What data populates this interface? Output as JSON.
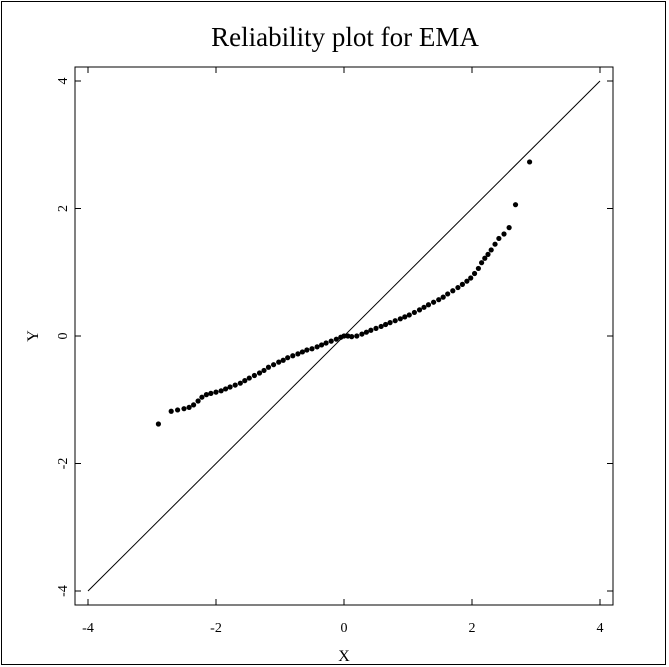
{
  "chart_data": {
    "type": "scatter",
    "title": "Reliability plot for EMA",
    "xlabel": "X",
    "ylabel": "Y",
    "xlim": [
      -4,
      4
    ],
    "ylim": [
      -4,
      4
    ],
    "xticks": [
      -4,
      -2,
      0,
      2,
      4
    ],
    "yticks": [
      -4,
      -2,
      0,
      2,
      4
    ],
    "reference_line": {
      "from": [
        -4,
        -4
      ],
      "to": [
        4,
        4
      ]
    },
    "grid": false,
    "series": [
      {
        "points": [
          [
            -2.9,
            -1.38
          ],
          [
            -2.7,
            -1.18
          ],
          [
            -2.6,
            -1.16
          ],
          [
            -2.5,
            -1.14
          ],
          [
            -2.42,
            -1.12
          ],
          [
            -2.35,
            -1.08
          ],
          [
            -2.28,
            -1.02
          ],
          [
            -2.22,
            -0.96
          ],
          [
            -2.15,
            -0.92
          ],
          [
            -2.08,
            -0.9
          ],
          [
            -2.0,
            -0.88
          ],
          [
            -1.92,
            -0.86
          ],
          [
            -1.85,
            -0.83
          ],
          [
            -1.78,
            -0.8
          ],
          [
            -1.7,
            -0.77
          ],
          [
            -1.62,
            -0.74
          ],
          [
            -1.55,
            -0.7
          ],
          [
            -1.48,
            -0.66
          ],
          [
            -1.4,
            -0.62
          ],
          [
            -1.32,
            -0.58
          ],
          [
            -1.25,
            -0.54
          ],
          [
            -1.18,
            -0.49
          ],
          [
            -1.1,
            -0.45
          ],
          [
            -1.02,
            -0.41
          ],
          [
            -0.95,
            -0.38
          ],
          [
            -0.88,
            -0.34
          ],
          [
            -0.8,
            -0.31
          ],
          [
            -0.72,
            -0.28
          ],
          [
            -0.65,
            -0.25
          ],
          [
            -0.58,
            -0.22
          ],
          [
            -0.5,
            -0.2
          ],
          [
            -0.42,
            -0.17
          ],
          [
            -0.35,
            -0.14
          ],
          [
            -0.28,
            -0.11
          ],
          [
            -0.2,
            -0.08
          ],
          [
            -0.12,
            -0.05
          ],
          [
            -0.05,
            -0.02
          ],
          [
            0.0,
            0.0
          ],
          [
            0.06,
            0.0
          ],
          [
            0.12,
            -0.01
          ],
          [
            0.2,
            0.0
          ],
          [
            0.28,
            0.03
          ],
          [
            0.35,
            0.06
          ],
          [
            0.42,
            0.09
          ],
          [
            0.5,
            0.12
          ],
          [
            0.58,
            0.15
          ],
          [
            0.65,
            0.18
          ],
          [
            0.72,
            0.21
          ],
          [
            0.8,
            0.24
          ],
          [
            0.88,
            0.27
          ],
          [
            0.95,
            0.3
          ],
          [
            1.02,
            0.33
          ],
          [
            1.1,
            0.37
          ],
          [
            1.18,
            0.41
          ],
          [
            1.25,
            0.45
          ],
          [
            1.32,
            0.49
          ],
          [
            1.4,
            0.53
          ],
          [
            1.48,
            0.57
          ],
          [
            1.55,
            0.61
          ],
          [
            1.62,
            0.66
          ],
          [
            1.7,
            0.71
          ],
          [
            1.78,
            0.76
          ],
          [
            1.85,
            0.81
          ],
          [
            1.92,
            0.86
          ],
          [
            1.98,
            0.91
          ],
          [
            2.04,
            0.98
          ],
          [
            2.1,
            1.06
          ],
          [
            2.15,
            1.15
          ],
          [
            2.2,
            1.22
          ],
          [
            2.25,
            1.28
          ],
          [
            2.3,
            1.35
          ],
          [
            2.36,
            1.44
          ],
          [
            2.42,
            1.53
          ],
          [
            2.5,
            1.6
          ],
          [
            2.58,
            1.7
          ],
          [
            2.68,
            2.06
          ],
          [
            2.9,
            2.73
          ]
        ]
      }
    ]
  }
}
